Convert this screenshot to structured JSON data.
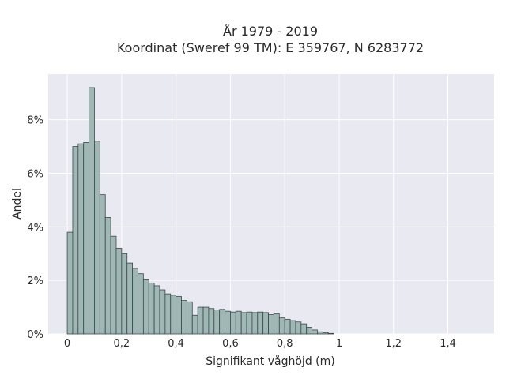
{
  "chart_data": {
    "type": "bar",
    "title_line1": "År 1979 - 2019",
    "title_line2": "Koordinat (Sweref 99 TM): E 359767, N 6283772",
    "xlabel": "Signifikant våghöjd (m)",
    "ylabel": "Andel",
    "xlim": [
      -0.07,
      1.57
    ],
    "ylim": [
      0,
      9.7
    ],
    "grid": true,
    "x_ticks": [
      {
        "value": 0,
        "label": "0"
      },
      {
        "value": 0.2,
        "label": "0,2"
      },
      {
        "value": 0.4,
        "label": "0,4"
      },
      {
        "value": 0.6,
        "label": "0,6"
      },
      {
        "value": 0.8,
        "label": "0,8"
      },
      {
        "value": 1.0,
        "label": "1"
      },
      {
        "value": 1.2,
        "label": "1,2"
      },
      {
        "value": 1.4,
        "label": "1,4"
      }
    ],
    "y_ticks": [
      {
        "value": 0,
        "label": "0%"
      },
      {
        "value": 2,
        "label": "2%"
      },
      {
        "value": 4,
        "label": "4%"
      },
      {
        "value": 6,
        "label": "6%"
      },
      {
        "value": 8,
        "label": "8%"
      }
    ],
    "bin_start": 0.01,
    "bin_width": 0.02,
    "values": [
      3.8,
      7.0,
      7.1,
      7.15,
      9.2,
      7.2,
      5.2,
      4.35,
      3.65,
      3.2,
      3.0,
      2.65,
      2.45,
      2.25,
      2.05,
      1.9,
      1.8,
      1.65,
      1.5,
      1.45,
      1.4,
      1.25,
      1.2,
      0.7,
      1.0,
      1.0,
      0.95,
      0.9,
      0.92,
      0.85,
      0.82,
      0.85,
      0.8,
      0.82,
      0.8,
      0.82,
      0.8,
      0.72,
      0.75,
      0.6,
      0.55,
      0.5,
      0.45,
      0.38,
      0.25,
      0.15,
      0.08,
      0.05,
      0.02
    ],
    "colors": {
      "plot_background": "#e9e9f2",
      "grid": "#ffffff",
      "bar_fill": "#9fb8b6",
      "bar_stroke": "#3b4646"
    }
  }
}
